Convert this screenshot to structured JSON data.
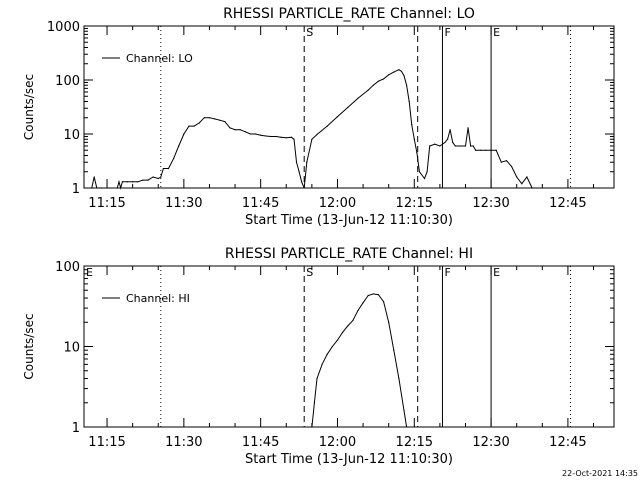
{
  "footer_timestamp": "22-Oct-2021 14:35",
  "chart_data": [
    {
      "type": "line",
      "title": "RHESSI PARTICLE_RATE Channel: LO",
      "xlabel": "Start Time (13-Jun-12 11:10:30)",
      "ylabel": "Counts/sec",
      "y_scale": "log",
      "ylim": [
        1,
        1000
      ],
      "y_ticks": [
        "1",
        "10",
        "100",
        "1000"
      ],
      "xlim": [
        "11:10:30",
        "12:54:00"
      ],
      "x_ticks": [
        "11:15",
        "11:30",
        "11:45",
        "12:00",
        "12:15",
        "12:30",
        "12:45"
      ],
      "legend": {
        "placement": "top-left",
        "entries": [
          "Channel: LO"
        ]
      },
      "markers": [
        {
          "time": "11:25:30",
          "style": "dotted",
          "label": ""
        },
        {
          "time": "11:53:30",
          "style": "dashed",
          "label": "S"
        },
        {
          "time": "12:15:40",
          "style": "dashed",
          "label": ""
        },
        {
          "time": "12:20:30",
          "style": "solid",
          "label": "F"
        },
        {
          "time": "12:30:00",
          "style": "solid",
          "label": "E"
        },
        {
          "time": "12:45:30",
          "style": "dotted",
          "label": ""
        }
      ],
      "series": [
        {
          "name": "Channel: LO",
          "x": [
            "11:10:30",
            "11:12:00",
            "11:12:30",
            "11:13:00",
            "11:13:30",
            "11:14:00",
            "11:17:00",
            "11:17:20",
            "11:17:40",
            "11:18:00",
            "11:19:00",
            "11:20:00",
            "11:21:00",
            "11:22:00",
            "11:23:00",
            "11:24:00",
            "11:25:00",
            "11:25:30",
            "11:26:00",
            "11:27:00",
            "11:28:00",
            "11:29:00",
            "11:30:00",
            "11:31:00",
            "11:32:00",
            "11:33:00",
            "11:34:00",
            "11:35:00",
            "11:36:00",
            "11:37:00",
            "11:38:00",
            "11:39:00",
            "11:40:00",
            "11:41:00",
            "11:42:00",
            "11:43:00",
            "11:44:00",
            "11:45:00",
            "11:46:00",
            "11:47:00",
            "11:48:00",
            "11:49:00",
            "11:50:00",
            "11:51:00",
            "11:51:30",
            "11:52:00",
            "11:52:30",
            "11:53:00",
            "11:53:30",
            "11:54:00",
            "11:55:00",
            "11:56:00",
            "11:58:00",
            "12:00:00",
            "12:02:00",
            "12:04:00",
            "12:06:00",
            "12:07:00",
            "12:08:00",
            "12:09:00",
            "12:10:00",
            "12:11:00",
            "12:12:00",
            "12:12:30",
            "12:13:00",
            "12:13:30",
            "12:14:00",
            "12:14:30",
            "12:15:00",
            "12:15:30",
            "12:16:00",
            "12:17:00",
            "12:17:30",
            "12:18:00",
            "12:19:00",
            "12:20:00",
            "12:21:00",
            "12:21:30",
            "12:22:00",
            "12:22:30",
            "12:23:00",
            "12:24:00",
            "12:25:00",
            "12:25:30",
            "12:26:00",
            "12:26:30",
            "12:27:00",
            "12:28:00",
            "12:29:00",
            "12:30:00",
            "12:31:00",
            "12:32:00",
            "12:33:00",
            "12:34:00",
            "12:35:00",
            "12:36:00",
            "12:37:00",
            "12:38:00"
          ],
          "values": [
            1.0,
            1.0,
            1.6,
            1.0,
            1.0,
            1.0,
            1.0,
            1.3,
            1.0,
            1.3,
            1.3,
            1.3,
            1.3,
            1.4,
            1.4,
            1.6,
            1.5,
            1.6,
            2.3,
            2.3,
            3.5,
            6.0,
            10.0,
            14.0,
            14.0,
            16.0,
            20.0,
            20.0,
            19.0,
            18.0,
            17.0,
            13.0,
            12.0,
            12.0,
            11.0,
            10.0,
            10.0,
            9.5,
            9.2,
            9.0,
            9.0,
            8.7,
            8.5,
            8.7,
            8.0,
            3.0,
            2.0,
            1.3,
            1.0,
            3.0,
            8.0,
            9.8,
            14.0,
            21.0,
            31.0,
            46.0,
            65.0,
            80.0,
            95.0,
            105.0,
            125.0,
            140.0,
            155.0,
            145.0,
            120.0,
            80.0,
            40.0,
            15.0,
            8.0,
            4.5,
            2.0,
            1.5,
            2.0,
            6.0,
            6.5,
            6.0,
            7.0,
            8.0,
            12.0,
            7.0,
            6.0,
            6.0,
            6.0,
            13.0,
            6.0,
            6.0,
            5.0,
            5.0,
            5.0,
            5.0,
            5.0,
            3.0,
            3.2,
            2.5,
            1.6,
            1.2,
            1.6,
            1.0
          ]
        }
      ]
    },
    {
      "type": "line",
      "title": "RHESSI PARTICLE_RATE Channel: HI",
      "xlabel": "Start Time (13-Jun-12 11:10:30)",
      "ylabel": "Counts/sec",
      "y_scale": "log",
      "ylim": [
        1,
        100
      ],
      "y_ticks": [
        "1",
        "10",
        "100"
      ],
      "xlim": [
        "11:10:30",
        "12:54:00"
      ],
      "x_ticks": [
        "11:15",
        "11:30",
        "11:45",
        "12:00",
        "12:15",
        "12:30",
        "12:45"
      ],
      "legend": {
        "placement": "top-left",
        "entries": [
          "Channel: HI"
        ]
      },
      "markers": [
        {
          "time": "11:10:30",
          "style": "none",
          "label": "E"
        },
        {
          "time": "11:25:30",
          "style": "dotted",
          "label": ""
        },
        {
          "time": "11:53:30",
          "style": "dashed",
          "label": "S"
        },
        {
          "time": "12:15:40",
          "style": "dashed",
          "label": ""
        },
        {
          "time": "12:20:30",
          "style": "solid",
          "label": "F"
        },
        {
          "time": "12:30:00",
          "style": "solid",
          "label": "E"
        },
        {
          "time": "12:45:30",
          "style": "dotted",
          "label": ""
        }
      ],
      "series": [
        {
          "name": "Channel: HI",
          "x": [
            "11:55:00",
            "11:55:30",
            "11:56:00",
            "11:57:00",
            "11:58:00",
            "11:59:00",
            "12:00:00",
            "12:01:00",
            "12:02:00",
            "12:03:00",
            "12:04:00",
            "12:05:00",
            "12:06:00",
            "12:07:00",
            "12:08:00",
            "12:09:00",
            "12:10:00",
            "12:11:00",
            "12:12:00",
            "12:13:00",
            "12:13:30"
          ],
          "values": [
            1.0,
            2.0,
            4.0,
            6.0,
            8.0,
            10.0,
            12.0,
            15.0,
            18.0,
            21.0,
            28.0,
            35.0,
            43.0,
            45.0,
            44.0,
            36.0,
            20.0,
            9.0,
            4.0,
            1.6,
            1.0
          ]
        }
      ]
    }
  ]
}
